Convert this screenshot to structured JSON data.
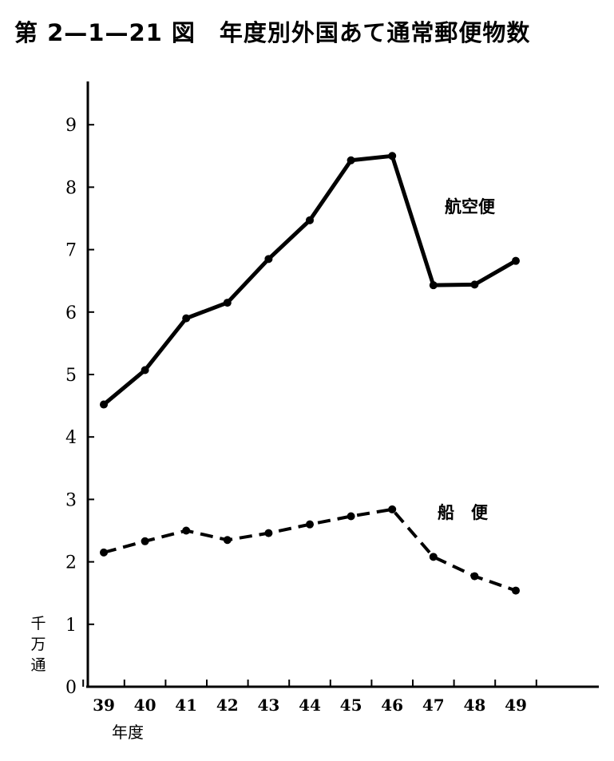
{
  "figure": {
    "title": "第 2—1—21 図　年度別外国あて通常郵便物数"
  },
  "chart_data": {
    "type": "line",
    "title": "年度別外国あて通常郵便物数",
    "categories": [
      "39",
      "40",
      "41",
      "42",
      "43",
      "44",
      "45",
      "46",
      "47",
      "48",
      "49"
    ],
    "xlabel": "年度",
    "ylabel": "千万通",
    "ylim": [
      0,
      9.5
    ],
    "yticks": [
      0,
      1,
      2,
      3,
      4,
      5,
      6,
      7,
      8,
      9
    ],
    "grid": false,
    "legend": "inline labels",
    "series": [
      {
        "name": "航空便",
        "style": "solid",
        "color": "#000000",
        "values": [
          4.52,
          5.07,
          5.9,
          6.15,
          6.85,
          7.47,
          8.43,
          8.5,
          6.43,
          6.44,
          6.82
        ]
      },
      {
        "name": "船　便",
        "style": "dashed",
        "color": "#000000",
        "values": [
          2.15,
          2.33,
          2.5,
          2.35,
          2.46,
          2.6,
          2.73,
          2.84,
          2.08,
          1.77,
          1.54
        ]
      }
    ]
  }
}
